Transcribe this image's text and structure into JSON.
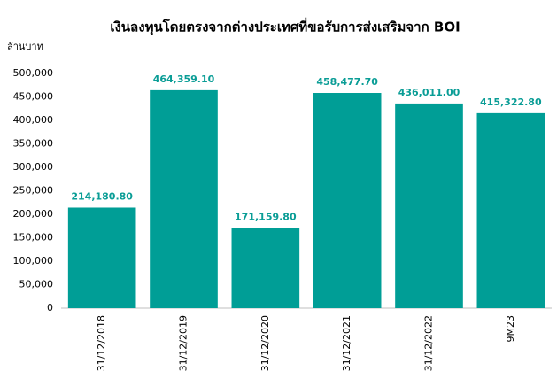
{
  "chart_data": {
    "type": "bar",
    "title": "เงินลงทุนโดยตรงจากต่างประเทศที่ขอรับการส่งเสริมจาก BOI",
    "y_label": "ล้านบาท",
    "categories": [
      "31/12/2018",
      "31/12/2019",
      "31/12/2020",
      "31/12/2021",
      "31/12/2022",
      "9M23"
    ],
    "values": [
      214180.8,
      464359.1,
      171159.8,
      458477.7,
      436011.0,
      415322.8
    ],
    "value_labels": [
      "214,180.80",
      "464,359.10",
      "171,159.80",
      "458,477.70",
      "436,011.00",
      "415,322.80"
    ],
    "color": "#009e96",
    "ylim": [
      0,
      500000
    ],
    "yticks": [
      0,
      {
        "value": 50000,
        "label": "50,000"
      },
      {
        "value": 100000,
        "label": "100,000"
      },
      {
        "value": 150000,
        "label": "150,000"
      },
      {
        "value": 200000,
        "label": "200,000"
      },
      {
        "value": 250000,
        "label": "250,000"
      },
      {
        "value": 300000,
        "label": "300,000"
      },
      {
        "value": 350000,
        "label": "350,000"
      },
      {
        "value": 400000,
        "label": "400,000"
      },
      {
        "value": 450000,
        "label": "450,000"
      },
      {
        "value": 500000,
        "label": "500,000"
      }
    ],
    "grid": false
  }
}
